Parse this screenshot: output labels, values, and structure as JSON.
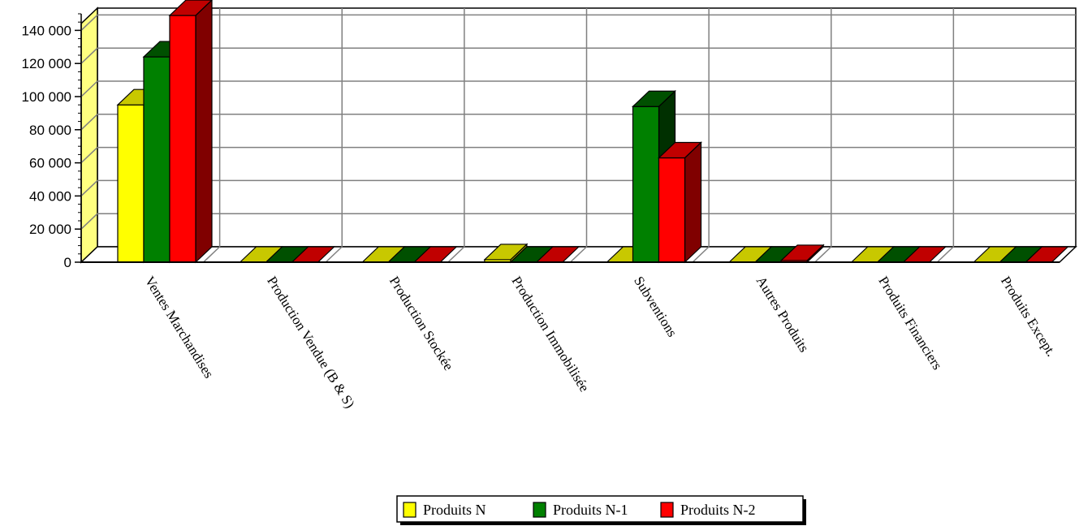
{
  "chart_data": {
    "type": "bar",
    "categories": [
      "Ventes Marchandises",
      "Production Vendue (B & S)",
      "Production Stockée",
      "Production Immobilisée",
      "Subventions",
      "Autres Produits",
      "Produits Financiers",
      "Produits Except."
    ],
    "series": [
      {
        "name": "Produits N",
        "values": [
          95000,
          0,
          0,
          1500,
          0,
          0,
          0,
          0
        ]
      },
      {
        "name": "Produits N-1",
        "values": [
          124000,
          0,
          0,
          0,
          94000,
          0,
          0,
          0
        ]
      },
      {
        "name": "Produits N-2",
        "values": [
          149000,
          0,
          0,
          0,
          63000,
          1000,
          0,
          0
        ]
      }
    ],
    "ylim": [
      0,
      150000
    ],
    "yticks": [
      "0",
      "20 000",
      "40 000",
      "60 000",
      "80 000",
      "100 000",
      "120 000",
      "140 000"
    ],
    "ytick_values": [
      0,
      20000,
      40000,
      60000,
      80000,
      100000,
      120000,
      140000
    ],
    "grid": true,
    "three_d": true,
    "legend_position": "bottom-center",
    "colors": {
      "Produits N": {
        "front": "#FFFF00",
        "top": "#C8C800",
        "side": "#9A9A00"
      },
      "Produits N-1": {
        "front": "#008000",
        "top": "#005000",
        "side": "#003000"
      },
      "Produits N-2": {
        "front": "#FF0000",
        "top": "#C00000",
        "side": "#800000"
      }
    }
  }
}
